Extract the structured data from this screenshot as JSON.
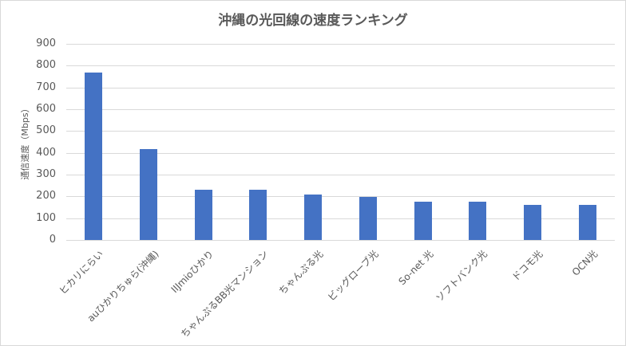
{
  "chart_data": {
    "type": "bar",
    "title": "沖縄の光回線の速度ランキング",
    "xlabel": "",
    "ylabel": "通信速度（Mbps）",
    "ylim": [
      0,
      900
    ],
    "yticks": [
      0,
      100,
      200,
      300,
      400,
      500,
      600,
      700,
      800,
      900
    ],
    "grid": true,
    "legend": null,
    "categories": [
      "ヒカリにらい",
      "auひかりちゅら(沖縄)",
      "IIJmioひかり",
      "ちゃんぷるBB光マンション",
      "ちゃんぷる光",
      "ビッグローブ光",
      "So-net 光",
      "ソフトバンク光",
      "ドコモ光",
      "OCN光"
    ],
    "values": [
      767,
      417,
      232,
      232,
      208,
      199,
      176,
      176,
      161,
      161
    ],
    "bar_color": "#4472c4"
  },
  "ytick_labels": [
    "0",
    "100",
    "200",
    "300",
    "400",
    "500",
    "600",
    "700",
    "800",
    "900"
  ]
}
